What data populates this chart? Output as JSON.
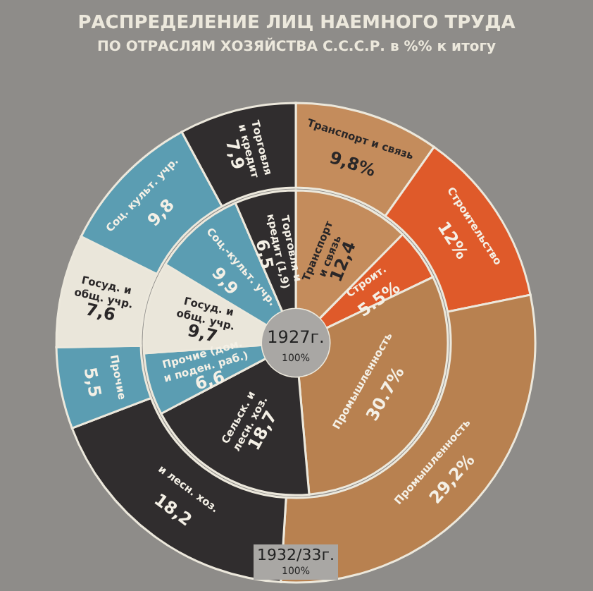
{
  "chart_data": {
    "type": "donut",
    "title": "РАСПРЕДЕЛЕНИЕ ЛИЦ НАЕМНОГО ТРУДА",
    "subtitle": "ПО ОТРАСЛЯМ ХОЗЯЙСТВА С.С.С.Р. в %% к итогу",
    "categories": [
      null,
      null,
      null,
      null,
      null,
      null,
      null,
      null
    ],
    "colors": [
      "#c48c5c",
      "#df5a2a",
      "#b88150",
      "#302d2e",
      "#5b9db2",
      "#eae6da",
      "#5b9db2",
      "#302d2e"
    ],
    "series": [
      {
        "name": "1932/33г.",
        "values": [
          9.8,
          12,
          29.2,
          18.2,
          5.5,
          7.6,
          9.8,
          7.9
        ],
        "value_labels": [
          "Транспорт и связь 9,8%",
          "Строительство 12%",
          "Промышленность 29,2%",
          "и лесн. хоз. 18,2",
          "Прочие 5,5",
          "Госуд. и общ. учр. 7,6",
          "Соц. культ. учр. 9,8",
          "Торговля и кредит 7,9"
        ]
      },
      {
        "name": "1927г.",
        "values": [
          12.4,
          5.5,
          30.7,
          18.7,
          6.6,
          9.7,
          9.9,
          6.5
        ],
        "value_labels": [
          "Транспорт и связь 12,4",
          "Строит. 5.5%",
          "Промышленность 30.7%",
          "Сельск. и лесн. хоз. 18,7",
          "Прочие (дом. и поден. раб.) 6,6",
          "Госуд. и общ. учр. 9,7",
          "Соц.-культ. учр. 9,9",
          "Торговля и кредит (1,9) 6,5"
        ]
      }
    ],
    "annotations": [
      "100%",
      "100%"
    ]
  }
}
